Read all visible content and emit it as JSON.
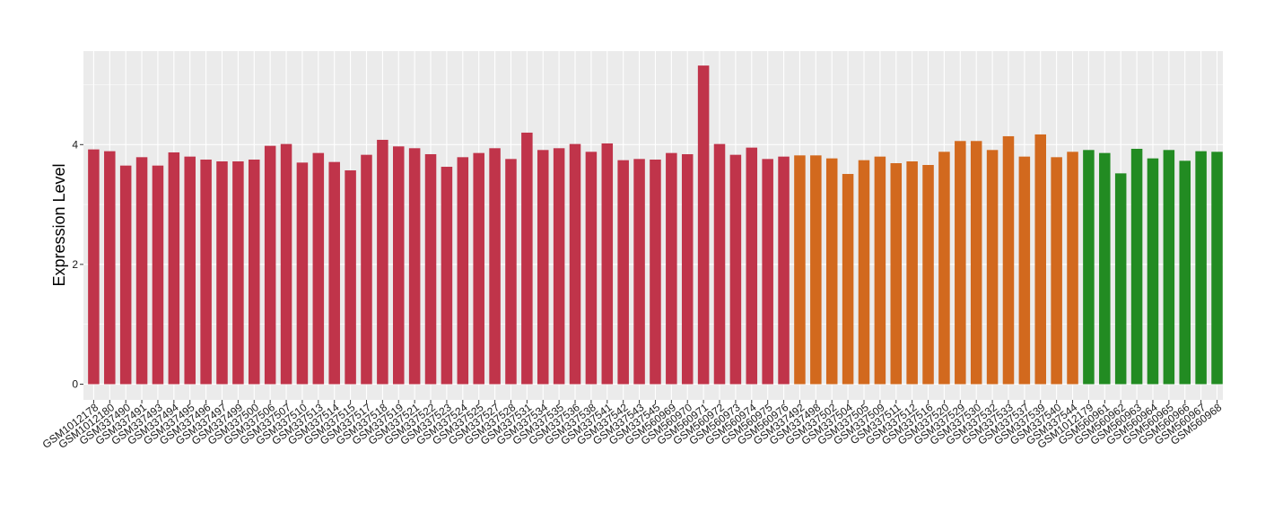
{
  "chart_data": {
    "type": "bar",
    "ylabel": "Expression Level",
    "xlabel": "",
    "ylim": [
      0,
      5.55
    ],
    "yticks": [
      0,
      2,
      4
    ],
    "grid": true,
    "legend": "none",
    "colors": {
      "group1": "#c0344a",
      "group2": "#d2691e",
      "group3": "#228b22",
      "panel_bg": "#ebebeb",
      "grid": "#ffffff"
    },
    "categories": [
      "GSM1012178",
      "GSM1012180",
      "GSM337490",
      "GSM337491",
      "GSM337493",
      "GSM337494",
      "GSM337495",
      "GSM337496",
      "GSM337497",
      "GSM337499",
      "GSM337500",
      "GSM337506",
      "GSM337507",
      "GSM337510",
      "GSM337513",
      "GSM337514",
      "GSM337515",
      "GSM337517",
      "GSM337518",
      "GSM337519",
      "GSM337521",
      "GSM337522",
      "GSM337523",
      "GSM337524",
      "GSM337525",
      "GSM337527",
      "GSM337528",
      "GSM337531",
      "GSM337534",
      "GSM337535",
      "GSM337536",
      "GSM337538",
      "GSM337541",
      "GSM337542",
      "GSM337543",
      "GSM337545",
      "GSM560969",
      "GSM560970",
      "GSM560971",
      "GSM560972",
      "GSM560973",
      "GSM560974",
      "GSM560975",
      "GSM560976",
      "GSM337492",
      "GSM337498",
      "GSM337502",
      "GSM337504",
      "GSM337505",
      "GSM337509",
      "GSM337511",
      "GSM337512",
      "GSM337516",
      "GSM337520",
      "GSM337529",
      "GSM337530",
      "GSM337532",
      "GSM337533",
      "GSM337537",
      "GSM337539",
      "GSM337540",
      "GSM337544",
      "GSM1012179",
      "GSM560961",
      "GSM560962",
      "GSM560963",
      "GSM560964",
      "GSM560965",
      "GSM560966",
      "GSM560967",
      "GSM560968"
    ],
    "values": [
      3.92,
      3.89,
      3.65,
      3.79,
      3.65,
      3.87,
      3.8,
      3.75,
      3.72,
      3.72,
      3.75,
      3.98,
      4.01,
      3.7,
      3.86,
      3.71,
      3.57,
      3.83,
      4.08,
      3.97,
      3.94,
      3.84,
      3.63,
      3.79,
      3.86,
      3.94,
      3.76,
      4.2,
      3.91,
      3.94,
      4.01,
      3.88,
      4.02,
      3.74,
      3.76,
      3.75,
      3.86,
      3.84,
      5.32,
      4.01,
      3.83,
      3.95,
      3.76,
      3.8,
      3.82,
      3.82,
      3.77,
      3.51,
      3.74,
      3.8,
      3.69,
      3.72,
      3.66,
      3.88,
      4.06,
      4.06,
      3.91,
      4.14,
      3.8,
      4.17,
      3.79,
      3.88,
      3.91,
      3.86,
      3.52,
      3.93,
      3.77,
      3.91,
      3.73,
      3.89,
      3.88
    ],
    "groups": [
      1,
      1,
      1,
      1,
      1,
      1,
      1,
      1,
      1,
      1,
      1,
      1,
      1,
      1,
      1,
      1,
      1,
      1,
      1,
      1,
      1,
      1,
      1,
      1,
      1,
      1,
      1,
      1,
      1,
      1,
      1,
      1,
      1,
      1,
      1,
      1,
      1,
      1,
      1,
      1,
      1,
      1,
      1,
      1,
      2,
      2,
      2,
      2,
      2,
      2,
      2,
      2,
      2,
      2,
      2,
      2,
      2,
      2,
      2,
      2,
      2,
      2,
      3,
      3,
      3,
      3,
      3,
      3,
      3,
      3,
      3
    ]
  }
}
